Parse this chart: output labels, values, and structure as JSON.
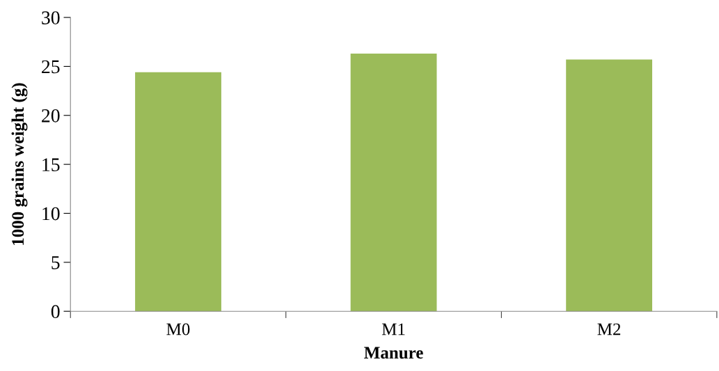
{
  "chart_data": {
    "type": "bar",
    "xlabel": "Manure",
    "ylabel": "1000 grains weight (g)",
    "categories": [
      "M0",
      "M1",
      "M2"
    ],
    "values": [
      24.4,
      26.3,
      25.7
    ],
    "color": "#9bbb59",
    "ylim": [
      0,
      30
    ],
    "yticks": [
      0,
      5,
      10,
      15,
      20,
      25,
      30
    ],
    "grid": false,
    "legend": false
  }
}
